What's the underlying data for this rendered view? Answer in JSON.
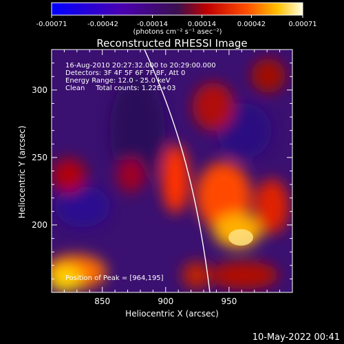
{
  "chart_data": {
    "type": "heatmap",
    "title": "Reconstructed RHESSI Image",
    "xlabel": "Heliocentric X (arcsec)",
    "ylabel": "Heliocentric Y (arcsec)",
    "xlim": [
      810,
      1000
    ],
    "ylim": [
      150,
      330
    ],
    "xticks": [
      850,
      900,
      950
    ],
    "yticks": [
      200,
      250,
      300
    ],
    "colorbar": {
      "min": -0.00071,
      "max": 0.00071,
      "ticks": [
        "-0.00071",
        "-0.00042",
        "-0.00014",
        "0.00014",
        "0.00042",
        "0.00071"
      ],
      "unit_label": "(photons cm⁻² s⁻¹ asec⁻²)"
    },
    "annotations": [
      "16-Aug-2010 20:27:32.000 to 20:29:00.000",
      "Detectors: 3F 4F 5F 6F 7F 8F, Att 0",
      "Energy Range: 12.0 - 25.0 keV",
      "Clean     Total counts: 1.22E+03"
    ],
    "peak_label": "Position of Peak = [964,195]",
    "peak": [
      964,
      195
    ],
    "footer": "10-May-2022 00:41"
  }
}
